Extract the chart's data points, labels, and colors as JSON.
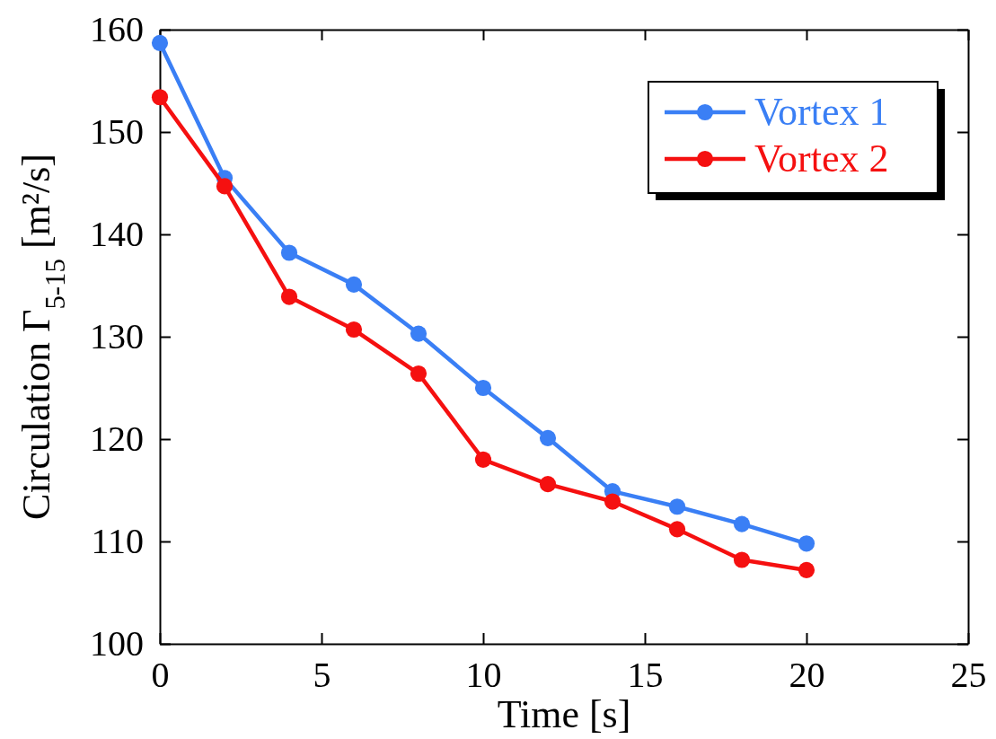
{
  "chart_data": {
    "type": "line",
    "xlabel": "Time [s]",
    "ylabel": "Circulation Γ$_{5-15}$ [m²/s]",
    "x": [
      0,
      2,
      4,
      6,
      8,
      10,
      12,
      14,
      16,
      18,
      20
    ],
    "series": [
      {
        "name": "Vortex 1",
        "color": "#3a7ff5",
        "values": [
          158.7,
          145.5,
          138.2,
          135.1,
          130.3,
          125.0,
          120.1,
          114.9,
          113.4,
          111.7,
          109.8
        ]
      },
      {
        "name": "Vortex 2",
        "color": "#f51010",
        "values": [
          153.4,
          144.7,
          133.9,
          130.7,
          126.4,
          118.0,
          115.6,
          113.9,
          111.2,
          108.2,
          107.2
        ]
      }
    ],
    "xlim": [
      0,
      25
    ],
    "xticks": [
      0,
      5,
      10,
      15,
      20,
      25
    ],
    "ylim": [
      100,
      160
    ],
    "yticks": [
      100,
      110,
      120,
      130,
      140,
      150,
      160
    ],
    "grid": false,
    "legend": "top right",
    "marker": "circle",
    "line_style": "solid"
  }
}
